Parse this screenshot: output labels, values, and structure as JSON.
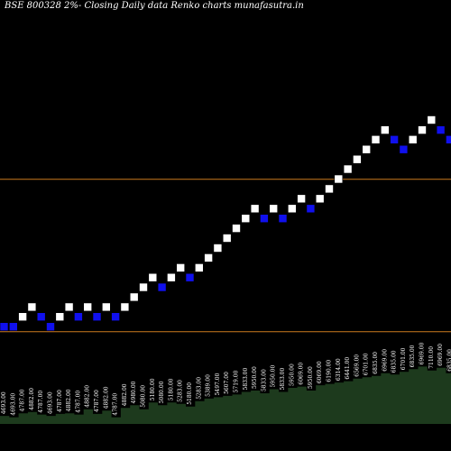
{
  "chart_data": {
    "type": "renko",
    "title": "BSE 800328  2%-  Closing Daily data  Renko  charts munafasutra.in",
    "box_size_percent": 2,
    "colors": {
      "up_brick": "#ffffff",
      "down_brick": "#1010ee",
      "brick_outline": "#000000",
      "support_lines": "#cc7a1e",
      "volume_fill": "#1d3a1d",
      "background": "#000000",
      "text": "#ffffff"
    },
    "support_levels": [
      4693.0,
      6375.0
    ],
    "price_axis_range": [
      3770,
      8370
    ],
    "bricks": [
      {
        "value": 4693,
        "direction": "down"
      },
      {
        "value": 4693,
        "direction": "down"
      },
      {
        "value": 4787,
        "direction": "up"
      },
      {
        "value": 4882,
        "direction": "up"
      },
      {
        "value": 4787,
        "direction": "down"
      },
      {
        "value": 4693,
        "direction": "down"
      },
      {
        "value": 4787,
        "direction": "up"
      },
      {
        "value": 4882,
        "direction": "up"
      },
      {
        "value": 4787,
        "direction": "down"
      },
      {
        "value": 4882,
        "direction": "up"
      },
      {
        "value": 4787,
        "direction": "down"
      },
      {
        "value": 4882,
        "direction": "up"
      },
      {
        "value": 4787,
        "direction": "down"
      },
      {
        "value": 4882,
        "direction": "up"
      },
      {
        "value": 4980,
        "direction": "up"
      },
      {
        "value": 5080,
        "direction": "up"
      },
      {
        "value": 5180,
        "direction": "up"
      },
      {
        "value": 5080,
        "direction": "down"
      },
      {
        "value": 5180,
        "direction": "up"
      },
      {
        "value": 5283,
        "direction": "up"
      },
      {
        "value": 5180,
        "direction": "down"
      },
      {
        "value": 5283,
        "direction": "up"
      },
      {
        "value": 5389,
        "direction": "up"
      },
      {
        "value": 5497,
        "direction": "up"
      },
      {
        "value": 5607,
        "direction": "up"
      },
      {
        "value": 5719,
        "direction": "up"
      },
      {
        "value": 5833,
        "direction": "up"
      },
      {
        "value": 5950,
        "direction": "up"
      },
      {
        "value": 5833,
        "direction": "down"
      },
      {
        "value": 5950,
        "direction": "up"
      },
      {
        "value": 5833,
        "direction": "down"
      },
      {
        "value": 5950,
        "direction": "up"
      },
      {
        "value": 6069,
        "direction": "up"
      },
      {
        "value": 5950,
        "direction": "down"
      },
      {
        "value": 6069,
        "direction": "up"
      },
      {
        "value": 6190,
        "direction": "up"
      },
      {
        "value": 6314,
        "direction": "up"
      },
      {
        "value": 6441,
        "direction": "up"
      },
      {
        "value": 6569,
        "direction": "up"
      },
      {
        "value": 6701,
        "direction": "up"
      },
      {
        "value": 6835,
        "direction": "up"
      },
      {
        "value": 6969,
        "direction": "up"
      },
      {
        "value": 6835,
        "direction": "down"
      },
      {
        "value": 6701,
        "direction": "down"
      },
      {
        "value": 6835,
        "direction": "up"
      },
      {
        "value": 6969,
        "direction": "up"
      },
      {
        "value": 7110,
        "direction": "up"
      },
      {
        "value": 6969,
        "direction": "down"
      },
      {
        "value": 6835,
        "direction": "down"
      },
      {
        "value": 6701,
        "direction": "down"
      },
      {
        "value": 6835,
        "direction": "up"
      },
      {
        "value": 6701,
        "direction": "down"
      },
      {
        "value": 6835,
        "direction": "up"
      },
      {
        "value": 6969,
        "direction": "up"
      },
      {
        "value": 7110,
        "direction": "up"
      },
      {
        "value": 7252,
        "direction": "up"
      },
      {
        "value": 7110,
        "direction": "down"
      },
      {
        "value": 7252,
        "direction": "up"
      },
      {
        "value": 7110,
        "direction": "down"
      },
      {
        "value": 7252,
        "direction": "up"
      },
      {
        "value": 7397,
        "direction": "up"
      },
      {
        "value": 7545,
        "direction": "up"
      },
      {
        "value": 7696,
        "direction": "up"
      },
      {
        "value": 7545,
        "direction": "down"
      },
      {
        "value": 7696,
        "direction": "up"
      },
      {
        "value": 7850,
        "direction": "up"
      },
      {
        "value": 8007,
        "direction": "up"
      }
    ],
    "volumes": [
      12,
      10,
      16,
      18,
      14,
      12,
      15,
      16,
      14,
      22,
      15,
      20,
      10,
      24,
      28,
      22,
      32,
      28,
      32,
      30,
      26,
      34,
      38,
      40,
      42,
      44,
      48,
      50,
      46,
      52,
      48,
      54,
      56,
      50,
      58,
      60,
      62,
      64,
      68,
      70,
      72,
      76,
      74,
      78,
      82,
      86,
      80,
      84,
      76,
      78,
      80,
      74,
      78,
      82,
      84,
      88,
      86,
      90,
      94,
      96,
      98,
      92,
      96,
      80,
      94,
      96,
      100
    ],
    "labels": [
      "4693.00",
      "4693.00",
      "4787.00",
      "4882.00",
      "4787.00",
      "4693.00",
      "4787.00",
      "4882.00",
      "4787.00",
      "4882.00",
      "4787.00",
      "4882.00",
      "4787.00",
      "4882.00",
      "4980.00",
      "5080.00",
      "5180.00",
      "5080.00",
      "5180.00",
      "5283.00",
      "5180.00",
      "5283.00",
      "5389.00",
      "5497.00",
      "5607.00",
      "5719.00",
      "5833.00",
      "5950.00",
      "5833.00",
      "5950.00",
      "5833.00",
      "5950.00",
      "6069.00",
      "5950.00",
      "6069.00",
      "6190.00",
      "6314.00",
      "6441.00",
      "6569.00",
      "6701.00",
      "6835.00",
      "6969.00",
      "6835.00",
      "6701.00",
      "6835.00",
      "6969.00",
      "7110.00",
      "6969.00",
      "6835.00",
      "6701.00",
      "6835.00",
      "6701.00",
      "6835.00",
      "6969.00",
      "7110.00",
      "7252.00",
      "7110.00",
      "7252.00",
      "7110.00",
      "7252.00",
      "7397.00",
      "7545.00",
      "7696.00",
      "7545.00",
      "7696.00",
      "7850.00",
      "8007.00"
    ]
  }
}
